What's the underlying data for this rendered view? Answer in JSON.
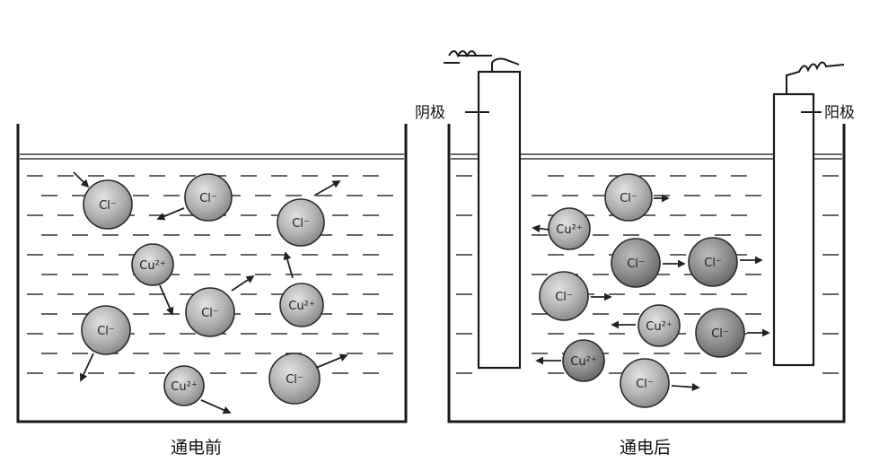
{
  "captions": {
    "before": "通电前",
    "after": "通电后"
  },
  "electrodes": {
    "cathode": "阴极",
    "anode": "阳极"
  },
  "ions": {
    "chloride": "Cl⁻",
    "copper": "Cu²⁺"
  },
  "colors": {
    "ink": "#1a1a1a",
    "ion_fill": "#b9b9b9",
    "ion_dark": "#8a8a8a"
  }
}
